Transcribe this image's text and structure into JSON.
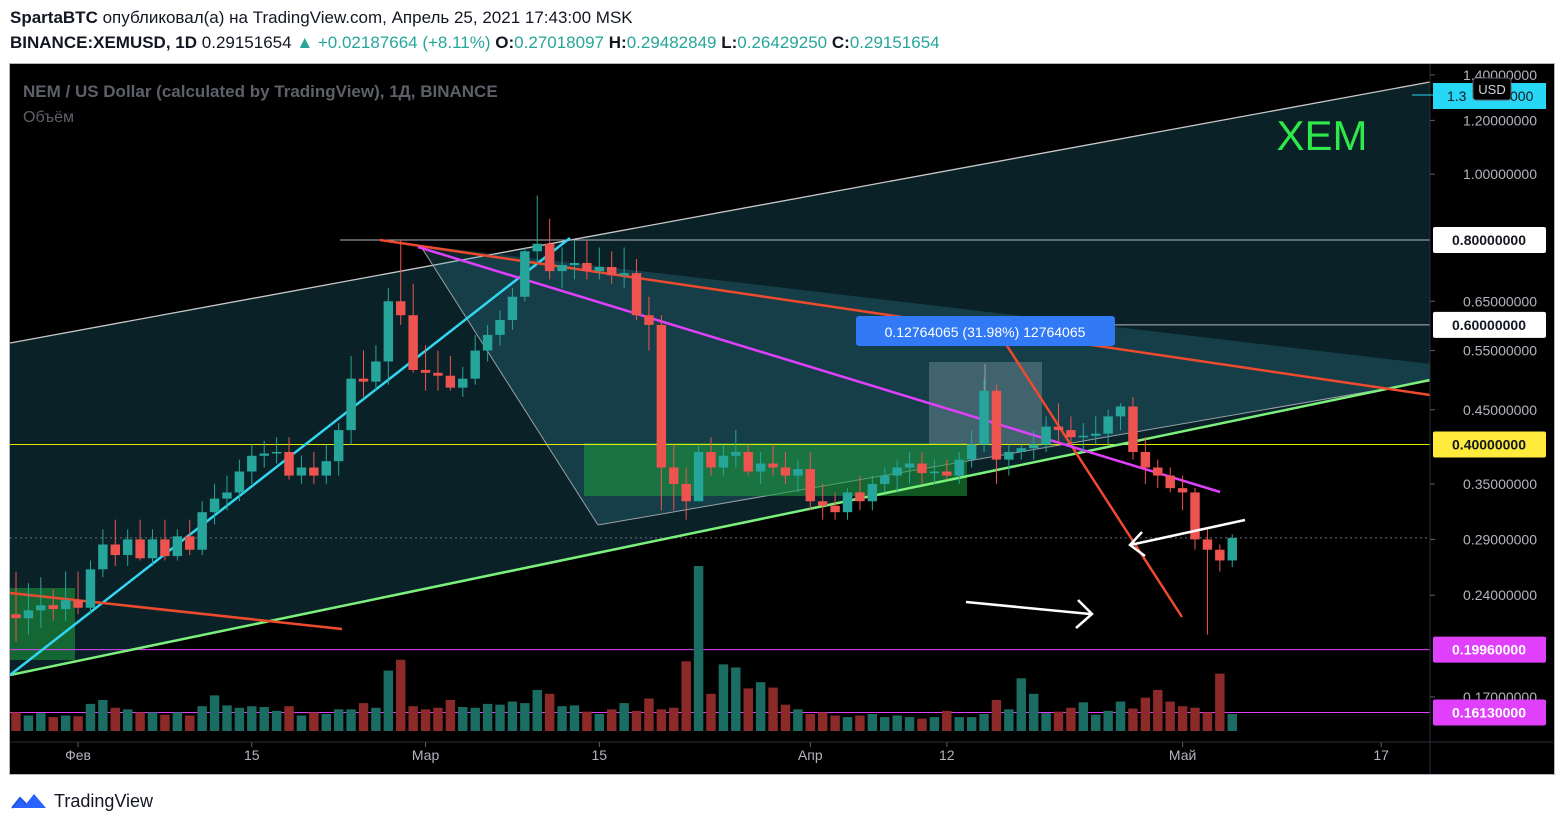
{
  "header": {
    "author": "SpartaBTC",
    "published_text": "опубликовал(а) на TradingView.com, Апрель 25, 2021 17:43:00 MSK",
    "symbol": "BINANCE:XEMUSD, 1D",
    "price": "0.29151654",
    "change": "▲ +0.02187664 (+8.11%)",
    "o_label": "O:",
    "o_value": "0.27018097",
    "h_label": "H:",
    "h_value": "0.29482849",
    "l_label": "L:",
    "l_value": "0.26429250",
    "c_label": "C:",
    "c_value": "0.29151654"
  },
  "chart_data": {
    "type": "candlestick",
    "title": "NEM / US Dollar (calculated by TradingView), 1Д, BINANCE",
    "subtitle": "Объём",
    "watermark": "XEM",
    "currency": "USD",
    "scale": "log",
    "ylim": [
      0.155,
      1.45
    ],
    "y_ticks": [
      "1.40000000",
      "1.20000000",
      "1.00000000",
      "0.65000000",
      "0.55000000",
      "0.45000000",
      "0.35000000",
      "0.29000000",
      "0.24000000",
      "0.17000000"
    ],
    "x_ticks": [
      {
        "label": "Фев",
        "date": "2021-02-01"
      },
      {
        "label": "15",
        "date": "2021-02-15"
      },
      {
        "label": "Мар",
        "date": "2021-03-01"
      },
      {
        "label": "15",
        "date": "2021-03-15"
      },
      {
        "label": "Апр",
        "date": "2021-04-01"
      },
      {
        "label": "12",
        "date": "2021-04-12"
      },
      {
        "label": "Май",
        "date": "2021-05-01"
      },
      {
        "label": "17",
        "date": "2021-05-17"
      }
    ],
    "x_range": [
      "2021-01-27",
      "2021-05-19"
    ],
    "levels": [
      {
        "label": "0.80000000",
        "value": 0.8,
        "style": "plain"
      },
      {
        "label": "0.60000000",
        "value": 0.6,
        "style": "plain"
      },
      {
        "label": "0.40000000",
        "value": 0.4,
        "style": "yellow"
      },
      {
        "label": "0.19960000",
        "value": 0.1996,
        "style": "magenta"
      },
      {
        "label": "0.16130000",
        "value": 0.1613,
        "style": "magenta"
      }
    ],
    "current_price_label": "1.3",
    "measure_label": "0.12764065 (31.98%) 12764065",
    "candles": [
      {
        "date": "2021-01-27",
        "o": 0.225,
        "h": 0.26,
        "l": 0.205,
        "c": 0.222
      },
      {
        "date": "2021-01-28",
        "o": 0.222,
        "h": 0.25,
        "l": 0.21,
        "c": 0.228
      },
      {
        "date": "2021-01-29",
        "o": 0.228,
        "h": 0.255,
        "l": 0.215,
        "c": 0.232
      },
      {
        "date": "2021-01-30",
        "o": 0.232,
        "h": 0.245,
        "l": 0.22,
        "c": 0.229
      },
      {
        "date": "2021-01-31",
        "o": 0.229,
        "h": 0.26,
        "l": 0.22,
        "c": 0.236
      },
      {
        "date": "2021-02-01",
        "o": 0.236,
        "h": 0.26,
        "l": 0.225,
        "c": 0.23
      },
      {
        "date": "2021-02-02",
        "o": 0.23,
        "h": 0.27,
        "l": 0.225,
        "c": 0.262
      },
      {
        "date": "2021-02-03",
        "o": 0.262,
        "h": 0.3,
        "l": 0.255,
        "c": 0.285
      },
      {
        "date": "2021-02-04",
        "o": 0.285,
        "h": 0.31,
        "l": 0.265,
        "c": 0.275
      },
      {
        "date": "2021-02-05",
        "o": 0.275,
        "h": 0.3,
        "l": 0.265,
        "c": 0.29
      },
      {
        "date": "2021-02-06",
        "o": 0.29,
        "h": 0.31,
        "l": 0.27,
        "c": 0.272
      },
      {
        "date": "2021-02-07",
        "o": 0.272,
        "h": 0.3,
        "l": 0.265,
        "c": 0.29
      },
      {
        "date": "2021-02-08",
        "o": 0.29,
        "h": 0.31,
        "l": 0.27,
        "c": 0.274
      },
      {
        "date": "2021-02-09",
        "o": 0.274,
        "h": 0.3,
        "l": 0.27,
        "c": 0.293
      },
      {
        "date": "2021-02-10",
        "o": 0.293,
        "h": 0.31,
        "l": 0.275,
        "c": 0.28
      },
      {
        "date": "2021-02-11",
        "o": 0.28,
        "h": 0.33,
        "l": 0.275,
        "c": 0.318
      },
      {
        "date": "2021-02-12",
        "o": 0.318,
        "h": 0.35,
        "l": 0.305,
        "c": 0.333
      },
      {
        "date": "2021-02-13",
        "o": 0.333,
        "h": 0.36,
        "l": 0.32,
        "c": 0.34
      },
      {
        "date": "2021-02-14",
        "o": 0.34,
        "h": 0.38,
        "l": 0.33,
        "c": 0.365
      },
      {
        "date": "2021-02-15",
        "o": 0.365,
        "h": 0.4,
        "l": 0.35,
        "c": 0.385
      },
      {
        "date": "2021-02-16",
        "o": 0.385,
        "h": 0.405,
        "l": 0.37,
        "c": 0.388
      },
      {
        "date": "2021-02-17",
        "o": 0.388,
        "h": 0.41,
        "l": 0.375,
        "c": 0.39
      },
      {
        "date": "2021-02-18",
        "o": 0.39,
        "h": 0.41,
        "l": 0.355,
        "c": 0.36
      },
      {
        "date": "2021-02-19",
        "o": 0.36,
        "h": 0.385,
        "l": 0.35,
        "c": 0.37
      },
      {
        "date": "2021-02-20",
        "o": 0.37,
        "h": 0.39,
        "l": 0.35,
        "c": 0.36
      },
      {
        "date": "2021-02-21",
        "o": 0.36,
        "h": 0.4,
        "l": 0.35,
        "c": 0.378
      },
      {
        "date": "2021-02-22",
        "o": 0.378,
        "h": 0.43,
        "l": 0.36,
        "c": 0.42
      },
      {
        "date": "2021-02-23",
        "o": 0.42,
        "h": 0.54,
        "l": 0.4,
        "c": 0.5
      },
      {
        "date": "2021-02-24",
        "o": 0.5,
        "h": 0.55,
        "l": 0.47,
        "c": 0.495
      },
      {
        "date": "2021-02-25",
        "o": 0.495,
        "h": 0.56,
        "l": 0.48,
        "c": 0.53
      },
      {
        "date": "2021-02-26",
        "o": 0.53,
        "h": 0.68,
        "l": 0.49,
        "c": 0.65
      },
      {
        "date": "2021-02-27",
        "o": 0.65,
        "h": 0.8,
        "l": 0.6,
        "c": 0.62
      },
      {
        "date": "2021-02-28",
        "o": 0.62,
        "h": 0.69,
        "l": 0.51,
        "c": 0.515
      },
      {
        "date": "2021-03-01",
        "o": 0.515,
        "h": 0.56,
        "l": 0.48,
        "c": 0.51
      },
      {
        "date": "2021-03-02",
        "o": 0.51,
        "h": 0.55,
        "l": 0.48,
        "c": 0.505
      },
      {
        "date": "2021-03-03",
        "o": 0.505,
        "h": 0.54,
        "l": 0.48,
        "c": 0.485
      },
      {
        "date": "2021-03-04",
        "o": 0.485,
        "h": 0.52,
        "l": 0.47,
        "c": 0.5
      },
      {
        "date": "2021-03-05",
        "o": 0.5,
        "h": 0.58,
        "l": 0.49,
        "c": 0.55
      },
      {
        "date": "2021-03-06",
        "o": 0.55,
        "h": 0.6,
        "l": 0.53,
        "c": 0.58
      },
      {
        "date": "2021-03-07",
        "o": 0.58,
        "h": 0.63,
        "l": 0.56,
        "c": 0.61
      },
      {
        "date": "2021-03-08",
        "o": 0.61,
        "h": 0.68,
        "l": 0.59,
        "c": 0.66
      },
      {
        "date": "2021-03-09",
        "o": 0.66,
        "h": 0.78,
        "l": 0.65,
        "c": 0.77
      },
      {
        "date": "2021-03-10",
        "o": 0.77,
        "h": 0.93,
        "l": 0.74,
        "c": 0.79
      },
      {
        "date": "2021-03-11",
        "o": 0.79,
        "h": 0.86,
        "l": 0.7,
        "c": 0.72
      },
      {
        "date": "2021-03-12",
        "o": 0.72,
        "h": 0.78,
        "l": 0.68,
        "c": 0.735
      },
      {
        "date": "2021-03-13",
        "o": 0.735,
        "h": 0.8,
        "l": 0.7,
        "c": 0.74
      },
      {
        "date": "2021-03-14",
        "o": 0.74,
        "h": 0.8,
        "l": 0.7,
        "c": 0.72
      },
      {
        "date": "2021-03-15",
        "o": 0.72,
        "h": 0.78,
        "l": 0.7,
        "c": 0.73
      },
      {
        "date": "2021-03-16",
        "o": 0.73,
        "h": 0.77,
        "l": 0.69,
        "c": 0.71
      },
      {
        "date": "2021-03-17",
        "o": 0.71,
        "h": 0.78,
        "l": 0.68,
        "c": 0.715
      },
      {
        "date": "2021-03-18",
        "o": 0.715,
        "h": 0.75,
        "l": 0.61,
        "c": 0.62
      },
      {
        "date": "2021-03-19",
        "o": 0.62,
        "h": 0.66,
        "l": 0.55,
        "c": 0.6
      },
      {
        "date": "2021-03-20",
        "o": 0.6,
        "h": 0.62,
        "l": 0.32,
        "c": 0.37
      },
      {
        "date": "2021-03-21",
        "o": 0.37,
        "h": 0.4,
        "l": 0.32,
        "c": 0.35
      },
      {
        "date": "2021-03-22",
        "o": 0.35,
        "h": 0.37,
        "l": 0.31,
        "c": 0.33
      },
      {
        "date": "2021-03-23",
        "o": 0.33,
        "h": 0.4,
        "l": 0.33,
        "c": 0.39
      },
      {
        "date": "2021-03-24",
        "o": 0.39,
        "h": 0.41,
        "l": 0.36,
        "c": 0.37
      },
      {
        "date": "2021-03-25",
        "o": 0.37,
        "h": 0.4,
        "l": 0.36,
        "c": 0.385
      },
      {
        "date": "2021-03-26",
        "o": 0.385,
        "h": 0.42,
        "l": 0.37,
        "c": 0.39
      },
      {
        "date": "2021-03-27",
        "o": 0.39,
        "h": 0.4,
        "l": 0.36,
        "c": 0.365
      },
      {
        "date": "2021-03-28",
        "o": 0.365,
        "h": 0.39,
        "l": 0.35,
        "c": 0.375
      },
      {
        "date": "2021-03-29",
        "o": 0.375,
        "h": 0.4,
        "l": 0.36,
        "c": 0.37
      },
      {
        "date": "2021-03-30",
        "o": 0.37,
        "h": 0.39,
        "l": 0.35,
        "c": 0.36
      },
      {
        "date": "2021-03-31",
        "o": 0.36,
        "h": 0.38,
        "l": 0.34,
        "c": 0.368
      },
      {
        "date": "2021-04-01",
        "o": 0.368,
        "h": 0.39,
        "l": 0.32,
        "c": 0.33
      },
      {
        "date": "2021-04-02",
        "o": 0.33,
        "h": 0.35,
        "l": 0.31,
        "c": 0.325
      },
      {
        "date": "2021-04-03",
        "o": 0.325,
        "h": 0.34,
        "l": 0.31,
        "c": 0.318
      },
      {
        "date": "2021-04-04",
        "o": 0.318,
        "h": 0.345,
        "l": 0.31,
        "c": 0.34
      },
      {
        "date": "2021-04-05",
        "o": 0.34,
        "h": 0.36,
        "l": 0.32,
        "c": 0.33
      },
      {
        "date": "2021-04-06",
        "o": 0.33,
        "h": 0.36,
        "l": 0.32,
        "c": 0.35
      },
      {
        "date": "2021-04-07",
        "o": 0.35,
        "h": 0.37,
        "l": 0.34,
        "c": 0.36
      },
      {
        "date": "2021-04-08",
        "o": 0.36,
        "h": 0.38,
        "l": 0.34,
        "c": 0.37
      },
      {
        "date": "2021-04-09",
        "o": 0.37,
        "h": 0.39,
        "l": 0.35,
        "c": 0.375
      },
      {
        "date": "2021-04-10",
        "o": 0.375,
        "h": 0.39,
        "l": 0.35,
        "c": 0.363
      },
      {
        "date": "2021-04-11",
        "o": 0.363,
        "h": 0.38,
        "l": 0.35,
        "c": 0.365
      },
      {
        "date": "2021-04-12",
        "o": 0.365,
        "h": 0.38,
        "l": 0.355,
        "c": 0.36
      },
      {
        "date": "2021-04-13",
        "o": 0.36,
        "h": 0.39,
        "l": 0.35,
        "c": 0.38
      },
      {
        "date": "2021-04-14",
        "o": 0.38,
        "h": 0.42,
        "l": 0.37,
        "c": 0.4
      },
      {
        "date": "2021-04-15",
        "o": 0.4,
        "h": 0.5,
        "l": 0.39,
        "c": 0.48
      },
      {
        "date": "2021-04-16",
        "o": 0.48,
        "h": 0.49,
        "l": 0.35,
        "c": 0.38
      },
      {
        "date": "2021-04-17",
        "o": 0.38,
        "h": 0.4,
        "l": 0.36,
        "c": 0.39
      },
      {
        "date": "2021-04-18",
        "o": 0.39,
        "h": 0.4,
        "l": 0.38,
        "c": 0.395
      },
      {
        "date": "2021-04-19",
        "o": 0.395,
        "h": 0.42,
        "l": 0.38,
        "c": 0.4
      },
      {
        "date": "2021-04-20",
        "o": 0.4,
        "h": 0.44,
        "l": 0.39,
        "c": 0.425
      },
      {
        "date": "2021-04-21",
        "o": 0.425,
        "h": 0.46,
        "l": 0.4,
        "c": 0.42
      },
      {
        "date": "2021-04-22",
        "o": 0.42,
        "h": 0.44,
        "l": 0.4,
        "c": 0.41
      },
      {
        "date": "2021-04-23",
        "o": 0.41,
        "h": 0.43,
        "l": 0.39,
        "c": 0.412
      },
      {
        "date": "2021-04-24",
        "o": 0.412,
        "h": 0.44,
        "l": 0.4,
        "c": 0.415
      },
      {
        "date": "2021-04-25",
        "o": 0.415,
        "h": 0.45,
        "l": 0.4,
        "c": 0.44
      },
      {
        "date": "2021-04-26",
        "o": 0.44,
        "h": 0.46,
        "l": 0.42,
        "c": 0.455
      },
      {
        "date": "2021-04-27",
        "o": 0.455,
        "h": 0.47,
        "l": 0.38,
        "c": 0.39
      },
      {
        "date": "2021-04-28",
        "o": 0.39,
        "h": 0.41,
        "l": 0.35,
        "c": 0.37
      },
      {
        "date": "2021-04-29",
        "o": 0.37,
        "h": 0.38,
        "l": 0.345,
        "c": 0.36
      },
      {
        "date": "2021-04-30",
        "o": 0.36,
        "h": 0.37,
        "l": 0.34,
        "c": 0.345
      },
      {
        "date": "2021-05-01",
        "o": 0.345,
        "h": 0.36,
        "l": 0.32,
        "c": 0.34
      },
      {
        "date": "2021-05-02",
        "o": 0.34,
        "h": 0.345,
        "l": 0.28,
        "c": 0.29
      },
      {
        "date": "2021-05-03",
        "o": 0.29,
        "h": 0.3,
        "l": 0.21,
        "c": 0.28
      },
      {
        "date": "2021-05-04",
        "o": 0.28,
        "h": 0.285,
        "l": 0.26,
        "c": 0.27
      },
      {
        "date": "2021-05-05",
        "o": 0.27,
        "h": 0.295,
        "l": 0.264,
        "c": 0.2915
      }
    ],
    "volume": [
      24,
      20,
      23,
      18,
      20,
      19,
      35,
      40,
      30,
      28,
      24,
      24,
      21,
      24,
      20,
      32,
      46,
      33,
      30,
      32,
      31,
      26,
      32,
      20,
      24,
      22,
      28,
      28,
      36,
      30,
      78,
      92,
      32,
      28,
      30,
      40,
      31,
      30,
      35,
      34,
      38,
      36,
      53,
      48,
      32,
      33,
      25,
      22,
      28,
      36,
      26,
      42,
      28,
      30,
      90,
      213,
      48,
      86,
      82,
      55,
      63,
      56,
      34,
      28,
      22,
      24,
      20,
      18,
      20,
      22,
      18,
      20,
      18,
      16,
      18,
      26,
      18,
      18,
      22,
      40,
      28,
      68,
      48,
      23,
      25,
      30,
      37,
      21,
      26,
      38,
      29,
      43,
      53,
      38,
      32,
      30,
      24,
      74,
      22,
      22,
      8
    ]
  }
}
